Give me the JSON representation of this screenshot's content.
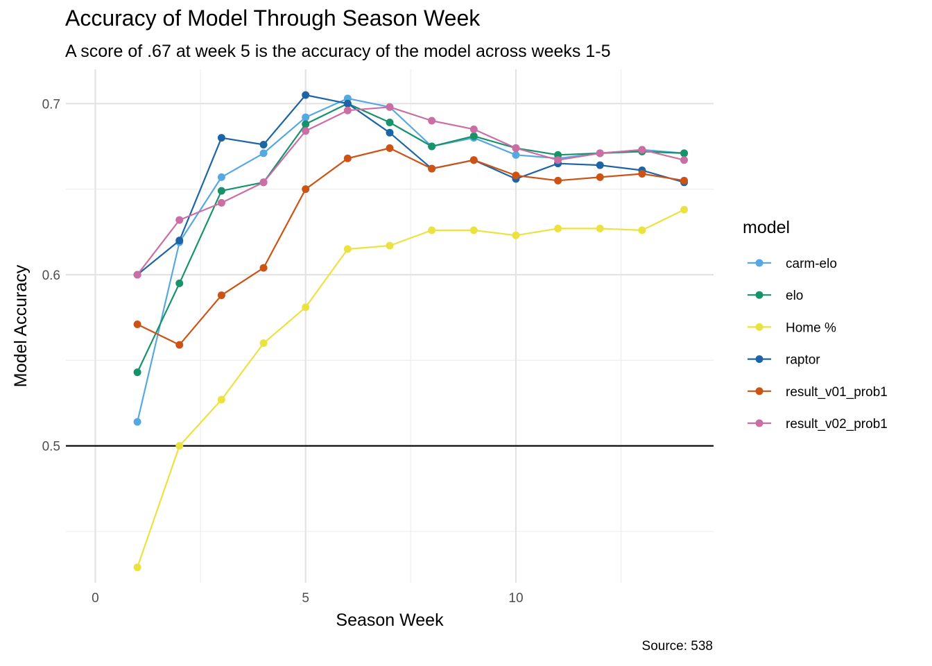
{
  "title": "Accuracy of Model Through Season Week",
  "subtitle": "A score of .67 at week 5 is the accuracy of the model across weeks 1-5",
  "caption": "Source: 538",
  "chart_data": {
    "type": "line",
    "xlabel": "Season Week",
    "ylabel": "Model Accuracy",
    "xlim": [
      -0.7,
      14.7
    ],
    "ylim": [
      0.42,
      0.72
    ],
    "xticks": [
      0,
      5,
      10
    ],
    "xtick_labels": [
      "0",
      "5",
      "10"
    ],
    "yticks": [
      0.5,
      0.6,
      0.7
    ],
    "ytick_labels": [
      "0.5",
      "0.6",
      "0.7"
    ],
    "reference_line": 0.5,
    "grid": true,
    "legend_title": "model",
    "legend_position": "right",
    "x": [
      1,
      2,
      3,
      4,
      5,
      6,
      7,
      8,
      9,
      10,
      11,
      12,
      13,
      14
    ],
    "series": [
      {
        "name": "carm-elo",
        "color": "#56a8e2",
        "values": [
          0.514,
          0.619,
          0.657,
          0.671,
          0.692,
          0.703,
          0.698,
          0.675,
          0.68,
          0.67,
          0.668,
          0.671,
          0.673,
          0.671
        ]
      },
      {
        "name": "elo",
        "color": "#18926b",
        "values": [
          0.543,
          0.595,
          0.649,
          0.654,
          0.688,
          0.7,
          0.689,
          0.675,
          0.681,
          0.674,
          0.67,
          0.671,
          0.672,
          0.671
        ]
      },
      {
        "name": "Home %",
        "color": "#ece23f",
        "values": [
          0.429,
          0.5,
          0.527,
          0.56,
          0.581,
          0.615,
          0.617,
          0.626,
          0.626,
          0.623,
          0.627,
          0.627,
          0.626,
          0.638
        ]
      },
      {
        "name": "raptor",
        "color": "#1d64a6",
        "values": [
          0.6,
          0.62,
          0.68,
          0.676,
          0.705,
          0.7,
          0.683,
          0.662,
          0.667,
          0.656,
          0.665,
          0.664,
          0.661,
          0.654
        ]
      },
      {
        "name": "result_v01_prob1",
        "color": "#cc5314",
        "values": [
          0.571,
          0.559,
          0.588,
          0.604,
          0.65,
          0.668,
          0.674,
          0.662,
          0.667,
          0.658,
          0.655,
          0.657,
          0.659,
          0.655
        ]
      },
      {
        "name": "result_v02_prob1",
        "color": "#cb6ea3",
        "values": [
          0.6,
          0.632,
          0.642,
          0.654,
          0.684,
          0.696,
          0.698,
          0.69,
          0.685,
          0.674,
          0.667,
          0.671,
          0.673,
          0.667
        ]
      }
    ]
  }
}
